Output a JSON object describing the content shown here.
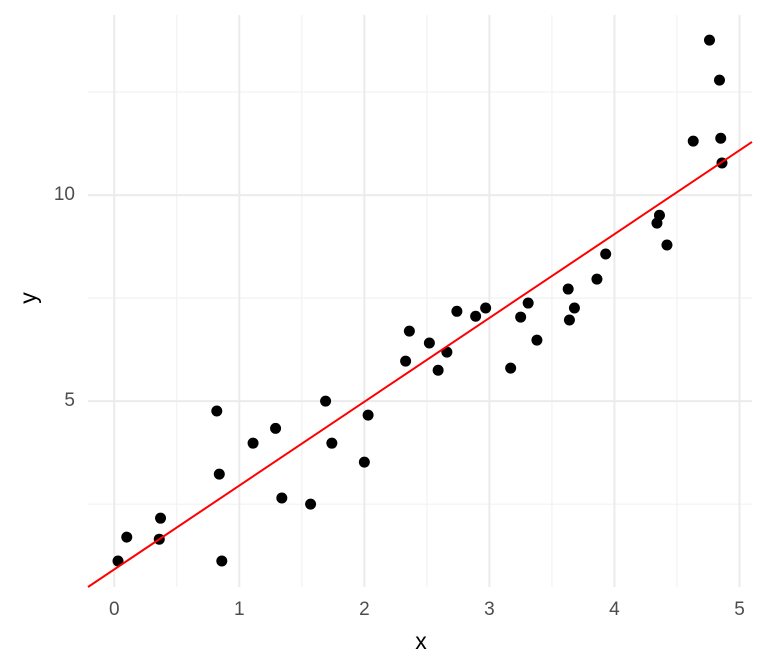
{
  "chart_data": {
    "type": "scatter",
    "x_label": "x",
    "y_label": "y",
    "xlim": [
      -0.21,
      5.1
    ],
    "ylim": [
      0.49,
      14.37
    ],
    "xticks": [
      0,
      1,
      2,
      3,
      4,
      5
    ],
    "yticks": [
      5,
      10
    ],
    "x_minor_ticks": [
      0.5,
      1.5,
      2.5,
      3.5,
      4.5
    ],
    "y_minor_ticks": [
      2.5,
      7.5,
      12.5
    ],
    "grid": true,
    "series": [
      {
        "color": "#000000",
        "x": [
          0.03,
          0.1,
          0.37,
          0.36,
          0.82,
          0.84,
          0.86,
          1.11,
          1.29,
          1.34,
          1.57,
          1.69,
          1.74,
          2.0,
          2.03,
          2.33,
          2.36,
          2.52,
          2.59,
          2.66,
          2.74,
          2.89,
          2.97,
          3.17,
          3.25,
          3.31,
          3.38,
          3.63,
          3.64,
          3.68,
          3.86,
          3.93,
          4.34,
          4.36,
          4.42,
          4.63,
          4.76,
          4.84,
          4.85,
          4.86
        ],
        "values": [
          1.12,
          1.7,
          2.16,
          1.65,
          4.76,
          3.23,
          1.12,
          3.98,
          4.34,
          2.65,
          2.5,
          5.0,
          3.98,
          3.52,
          4.66,
          5.97,
          6.7,
          6.41,
          5.75,
          6.19,
          7.18,
          7.06,
          7.26,
          5.8,
          7.04,
          7.38,
          6.48,
          7.72,
          6.97,
          7.26,
          7.96,
          8.57,
          9.32,
          9.51,
          8.79,
          11.31,
          13.76,
          12.79,
          11.38,
          10.78
        ]
      },
      {
        "type": "line",
        "color": "#ff0000",
        "x": [
          -0.21,
          5.1
        ],
        "values": [
          0.49,
          11.29
        ]
      }
    ]
  }
}
